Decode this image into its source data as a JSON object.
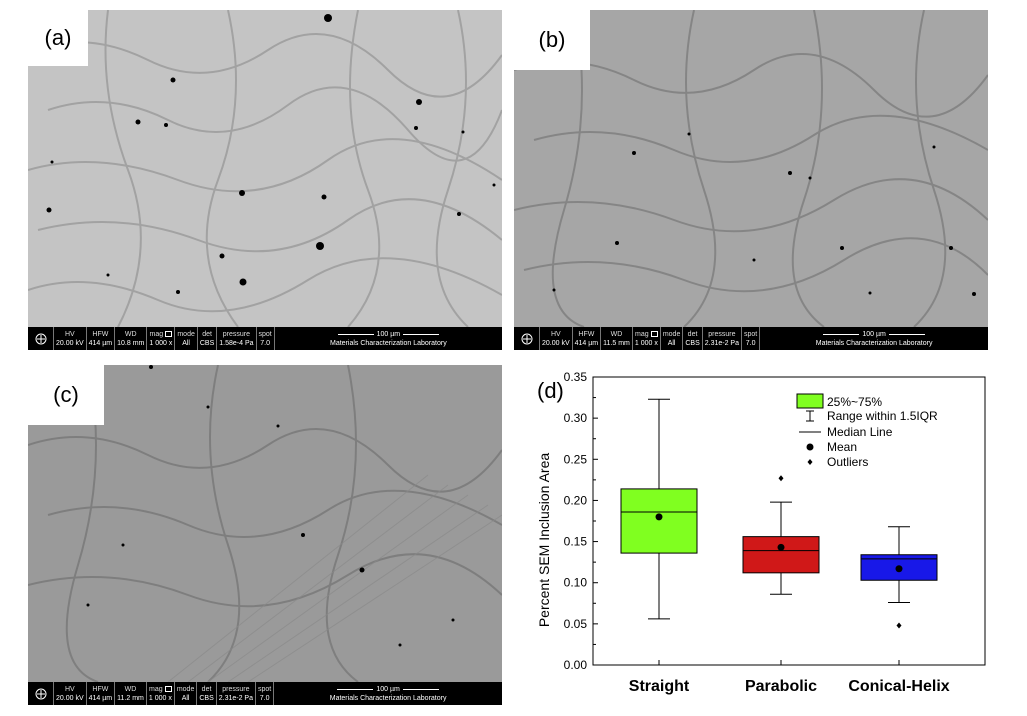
{
  "panels": [
    {
      "letter": "(a)",
      "databar": {
        "hv": "20.00 kV",
        "hfw": "414 µm",
        "wd": "10.8 mm",
        "mag": "1 000 x",
        "mode": "All",
        "det": "CBS",
        "pressure": "1.58e-4 Pa",
        "spot": "7.0"
      }
    },
    {
      "letter": "(b)",
      "databar": {
        "hv": "20.00 kV",
        "hfw": "414 µm",
        "wd": "11.5 mm",
        "mag": "1 000 x",
        "mode": "All",
        "det": "CBS",
        "pressure": "2.31e-2 Pa",
        "spot": "7.0"
      }
    },
    {
      "letter": "(c)",
      "databar": {
        "hv": "20.00 kV",
        "hfw": "414 µm",
        "wd": "11.2 mm",
        "mag": "1 000 x",
        "mode": "All",
        "det": "CBS",
        "pressure": "2.31e-2 Pa",
        "spot": "7.0"
      }
    }
  ],
  "databar_labels": {
    "hv": "HV",
    "hfw": "HFW",
    "wd": "WD",
    "mag": "mag",
    "mode": "mode",
    "det": "det",
    "pressure": "pressure",
    "spot": "spot",
    "scale": "100 µm",
    "lab": "Materials Characterization Laboratory"
  },
  "colors": {
    "straight": "#80ff20",
    "parabolic": "#d01818",
    "conical_helix": "#1818e8",
    "micrograph_a": "#c4c4c4",
    "micrograph_b": "#a6a6a6",
    "micrograph_c": "#9a9a9a"
  },
  "chart_data": {
    "type": "box",
    "panel_letter": "(d)",
    "ylabel": "Percent SEM Inclusion Area",
    "ylim": [
      0.0,
      0.35
    ],
    "yticks": [
      "0.00",
      "0.05",
      "0.10",
      "0.15",
      "0.20",
      "0.25",
      "0.30",
      "0.35"
    ],
    "categories": [
      "Straight",
      "Parabolic",
      "Conical-Helix"
    ],
    "boxes": [
      {
        "category": "Straight",
        "whisker_low": 0.056,
        "q1": 0.136,
        "median": 0.186,
        "q3": 0.214,
        "whisker_high": 0.323,
        "mean": 0.18,
        "outliers": []
      },
      {
        "category": "Parabolic",
        "whisker_low": 0.086,
        "q1": 0.112,
        "median": 0.139,
        "q3": 0.156,
        "whisker_high": 0.198,
        "mean": 0.143,
        "outliers": [
          0.227
        ]
      },
      {
        "category": "Conical-Helix",
        "whisker_low": 0.076,
        "q1": 0.103,
        "median": 0.129,
        "q3": 0.134,
        "whisker_high": 0.168,
        "mean": 0.117,
        "outliers": [
          0.048
        ]
      }
    ],
    "legend": {
      "placement": "top-right",
      "entries": [
        "25%~75%",
        "Range within 1.5IQR",
        "Median Line",
        "Mean",
        "Outliers"
      ]
    }
  }
}
